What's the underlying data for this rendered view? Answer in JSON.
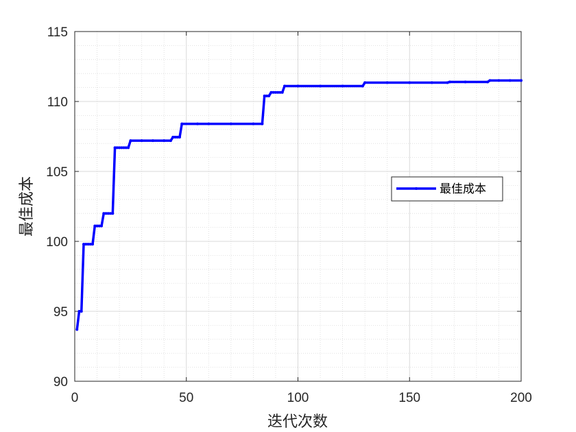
{
  "chart_data": {
    "type": "line",
    "title": "",
    "xlabel": "迭代次数",
    "ylabel": "最佳成本",
    "xlim": [
      0,
      200
    ],
    "ylim": [
      90,
      115
    ],
    "xticks": [
      0,
      50,
      100,
      150,
      200
    ],
    "yticks": [
      90,
      95,
      100,
      105,
      110,
      115
    ],
    "x_minor_step": 10,
    "y_minor_step": 1,
    "grid": true,
    "minor_grid": true,
    "legend_position": "right",
    "colors": {
      "series": "#0000FF",
      "grid": "#d9d9d9",
      "axis": "#262626"
    },
    "series": [
      {
        "name": "最佳成本",
        "points": [
          [
            1,
            93.7
          ],
          [
            2,
            95.0
          ],
          [
            3,
            95.0
          ],
          [
            4,
            99.8
          ],
          [
            5,
            99.8
          ],
          [
            6,
            99.8
          ],
          [
            7,
            99.8
          ],
          [
            8,
            99.8
          ],
          [
            9,
            101.1
          ],
          [
            10,
            101.1
          ],
          [
            11,
            101.1
          ],
          [
            12,
            101.1
          ],
          [
            13,
            102.0
          ],
          [
            14,
            102.0
          ],
          [
            15,
            102.0
          ],
          [
            16,
            102.0
          ],
          [
            17,
            102.0
          ],
          [
            18,
            106.7
          ],
          [
            19,
            106.7
          ],
          [
            20,
            106.7
          ],
          [
            21,
            106.7
          ],
          [
            22,
            106.7
          ],
          [
            23,
            106.7
          ],
          [
            24,
            106.7
          ],
          [
            25,
            107.2
          ],
          [
            30,
            107.2
          ],
          [
            35,
            107.2
          ],
          [
            40,
            107.2
          ],
          [
            43,
            107.2
          ],
          [
            44,
            107.45
          ],
          [
            45,
            107.45
          ],
          [
            46,
            107.45
          ],
          [
            47,
            107.45
          ],
          [
            48,
            108.4
          ],
          [
            55,
            108.4
          ],
          [
            60,
            108.4
          ],
          [
            70,
            108.4
          ],
          [
            80,
            108.4
          ],
          [
            84,
            108.4
          ],
          [
            85,
            110.4
          ],
          [
            86,
            110.4
          ],
          [
            87,
            110.4
          ],
          [
            88,
            110.65
          ],
          [
            89,
            110.65
          ],
          [
            90,
            110.65
          ],
          [
            91,
            110.65
          ],
          [
            92,
            110.65
          ],
          [
            93,
            110.65
          ],
          [
            94,
            111.1
          ],
          [
            100,
            111.1
          ],
          [
            110,
            111.1
          ],
          [
            120,
            111.1
          ],
          [
            129,
            111.1
          ],
          [
            130,
            111.35
          ],
          [
            140,
            111.35
          ],
          [
            150,
            111.35
          ],
          [
            160,
            111.35
          ],
          [
            167,
            111.35
          ],
          [
            168,
            111.4
          ],
          [
            175,
            111.4
          ],
          [
            185,
            111.4
          ],
          [
            186,
            111.5
          ],
          [
            190,
            111.5
          ],
          [
            195,
            111.5
          ],
          [
            200,
            111.5
          ]
        ]
      }
    ]
  }
}
